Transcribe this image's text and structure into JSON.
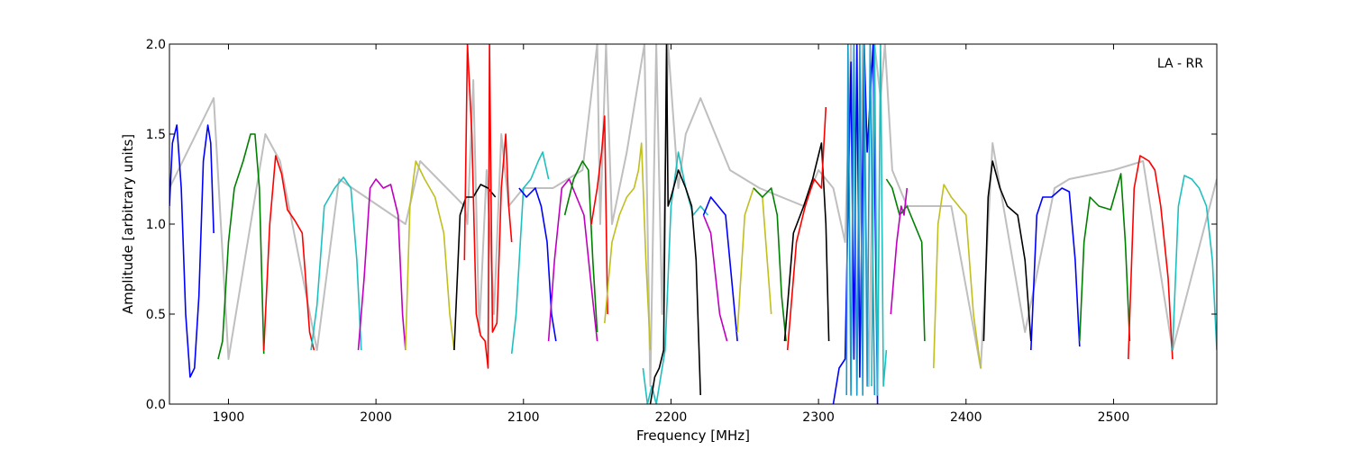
{
  "chart_data": {
    "type": "line",
    "title": "",
    "annotation": "LA - RR",
    "xlabel": "Frequency [MHz]",
    "ylabel": "Amplitude [arbitrary units]",
    "xlim": [
      1860,
      2570
    ],
    "ylim": [
      0.0,
      2.0
    ],
    "xticks": [
      1900,
      2000,
      2100,
      2200,
      2300,
      2400,
      2500
    ],
    "yticks": [
      0.0,
      0.5,
      1.0,
      1.5,
      2.0
    ],
    "xtick_labels": [
      "1900",
      "2000",
      "2100",
      "2200",
      "2300",
      "2400",
      "2500"
    ],
    "ytick_labels": [
      "0.0",
      "0.5",
      "1.0",
      "1.5",
      "2.0"
    ],
    "grid": false,
    "legend": "none",
    "colors": {
      "background_series": "#bfbfbf",
      "blue": "#0000ff",
      "green": "#008000",
      "red": "#ff0000",
      "cyan": "#1fbfbf",
      "magenta": "#bf00bf",
      "olive": "#bfbf1f",
      "black": "#000000",
      "teal": "#1a99c9"
    },
    "gray_series": {
      "x": [
        1860,
        1890,
        1900,
        1925,
        1935,
        1960,
        1975,
        2020,
        2030,
        2060,
        2062,
        2066,
        2070,
        2075,
        2080,
        2085,
        2090,
        2100,
        2120,
        2140,
        2150,
        2152,
        2156,
        2160,
        2170,
        2182,
        2186,
        2190,
        2194,
        2198,
        2205,
        2210,
        2220,
        2240,
        2260,
        2290,
        2300,
        2310,
        2318,
        2322,
        2326,
        2330,
        2334,
        2338,
        2342,
        2345,
        2350,
        2360,
        2370,
        2390,
        2410,
        2418,
        2440,
        2460,
        2470,
        2500,
        2520,
        2540,
        2570
      ],
      "y": [
        1.2,
        1.7,
        0.25,
        1.5,
        1.35,
        0.3,
        1.25,
        1.0,
        1.35,
        1.1,
        1.0,
        1.8,
        0.4,
        1.3,
        0.5,
        1.5,
        1.1,
        1.2,
        1.2,
        1.3,
        2.0,
        1.0,
        2.0,
        1.0,
        1.4,
        2.0,
        0.1,
        2.0,
        0.5,
        2.0,
        1.2,
        1.5,
        1.7,
        1.3,
        1.2,
        1.1,
        1.3,
        1.2,
        0.9,
        2.0,
        0.3,
        2.0,
        0.1,
        2.0,
        1.7,
        2.0,
        1.3,
        1.1,
        1.1,
        1.1,
        0.2,
        1.45,
        0.4,
        1.2,
        1.25,
        1.3,
        1.35,
        0.3,
        1.25
      ]
    },
    "series": [
      {
        "color": "blue",
        "x": [
          1860,
          1862,
          1865,
          1868,
          1871,
          1874,
          1877,
          1880,
          1883,
          1886,
          1888,
          1890
        ],
        "y": [
          1.1,
          1.45,
          1.55,
          1.2,
          0.5,
          0.15,
          0.2,
          0.6,
          1.35,
          1.55,
          1.45,
          0.95
        ]
      },
      {
        "color": "green",
        "x": [
          1893,
          1896,
          1900,
          1904,
          1910,
          1915,
          1918,
          1921,
          1924
        ],
        "y": [
          0.25,
          0.35,
          0.9,
          1.2,
          1.35,
          1.5,
          1.5,
          1.2,
          0.28
        ]
      },
      {
        "color": "red",
        "x": [
          1924,
          1928,
          1932,
          1936,
          1940,
          1945,
          1950,
          1955,
          1958
        ],
        "y": [
          0.3,
          1.0,
          1.38,
          1.28,
          1.08,
          1.02,
          0.95,
          0.4,
          0.3
        ]
      },
      {
        "color": "cyan",
        "x": [
          1956,
          1960,
          1965,
          1972,
          1978,
          1983,
          1987,
          1990
        ],
        "y": [
          0.3,
          0.55,
          1.1,
          1.2,
          1.26,
          1.2,
          0.8,
          0.3
        ]
      },
      {
        "color": "magenta",
        "x": [
          1988,
          1992,
          1996,
          2000,
          2005,
          2010,
          2015,
          2018,
          2020
        ],
        "y": [
          0.3,
          0.7,
          1.2,
          1.25,
          1.2,
          1.22,
          1.05,
          0.5,
          0.3
        ]
      },
      {
        "color": "olive",
        "x": [
          2020,
          2023,
          2027,
          2033,
          2040,
          2046,
          2050,
          2053
        ],
        "y": [
          0.3,
          1.1,
          1.35,
          1.25,
          1.15,
          0.95,
          0.5,
          0.3
        ]
      },
      {
        "color": "black",
        "x": [
          2053,
          2057,
          2061,
          2066,
          2071,
          2076,
          2081
        ],
        "y": [
          0.3,
          1.05,
          1.15,
          1.15,
          1.22,
          1.2,
          1.15
        ]
      },
      {
        "color": "red",
        "x": [
          2060,
          2062,
          2065,
          2068,
          2071,
          2074,
          2076,
          2077,
          2079,
          2082,
          2085,
          2088,
          2090,
          2092
        ],
        "y": [
          0.8,
          2.0,
          1.5,
          0.5,
          0.38,
          0.35,
          0.2,
          2.0,
          0.4,
          0.45,
          1.2,
          1.5,
          1.1,
          0.9
        ]
      },
      {
        "color": "cyan",
        "x": [
          2092,
          2095,
          2100,
          2105,
          2110,
          2113,
          2117
        ],
        "y": [
          0.28,
          0.5,
          1.2,
          1.25,
          1.35,
          1.4,
          1.25
        ]
      },
      {
        "color": "blue",
        "x": [
          2097,
          2102,
          2108,
          2112,
          2116,
          2119,
          2122
        ],
        "y": [
          1.2,
          1.15,
          1.2,
          1.1,
          0.9,
          0.5,
          0.35
        ]
      },
      {
        "color": "magenta",
        "x": [
          2117,
          2121,
          2126,
          2131,
          2136,
          2141,
          2146,
          2150
        ],
        "y": [
          0.35,
          0.8,
          1.2,
          1.25,
          1.15,
          1.05,
          0.65,
          0.35
        ]
      },
      {
        "color": "green",
        "x": [
          2128,
          2134,
          2140,
          2144,
          2147,
          2150
        ],
        "y": [
          1.05,
          1.25,
          1.35,
          1.3,
          0.8,
          0.4
        ]
      },
      {
        "color": "red",
        "x": [
          2146,
          2150,
          2153,
          2155,
          2157
        ],
        "y": [
          1.0,
          1.2,
          1.4,
          1.6,
          0.5
        ]
      },
      {
        "color": "olive",
        "x": [
          2155,
          2160,
          2165,
          2170,
          2175,
          2178,
          2180,
          2183,
          2186
        ],
        "y": [
          0.45,
          0.9,
          1.05,
          1.15,
          1.2,
          1.3,
          1.45,
          0.8,
          0.3
        ]
      },
      {
        "color": "cyan",
        "x": [
          2181,
          2184,
          2187,
          2190,
          2193,
          2196,
          2200,
          2205,
          2210,
          2215,
          2220,
          2225
        ],
        "y": [
          0.2,
          0.0,
          0.1,
          0.0,
          0.15,
          0.3,
          1.1,
          1.4,
          1.2,
          1.05,
          1.1,
          1.05
        ]
      },
      {
        "color": "black",
        "x": [
          2186,
          2189,
          2192,
          2195,
          2197,
          2198,
          2200,
          2205,
          2210,
          2214,
          2217,
          2220
        ],
        "y": [
          0.0,
          0.15,
          0.2,
          0.3,
          2.0,
          1.1,
          1.15,
          1.3,
          1.2,
          1.1,
          0.8,
          0.05
        ]
      },
      {
        "color": "blue",
        "x": [
          2222,
          2227,
          2232,
          2237,
          2241,
          2245
        ],
        "y": [
          1.05,
          1.15,
          1.1,
          1.05,
          0.7,
          0.35
        ]
      },
      {
        "color": "magenta",
        "x": [
          2222,
          2227,
          2233,
          2238
        ],
        "y": [
          1.05,
          0.95,
          0.5,
          0.35
        ]
      },
      {
        "color": "olive",
        "x": [
          2245,
          2250,
          2256,
          2262,
          2268
        ],
        "y": [
          0.4,
          1.05,
          1.2,
          1.15,
          0.5
        ]
      },
      {
        "color": "green",
        "x": [
          2256,
          2262,
          2268,
          2272,
          2275,
          2278
        ],
        "y": [
          1.2,
          1.15,
          1.2,
          1.05,
          0.6,
          0.35
        ]
      },
      {
        "color": "black",
        "x": [
          2277,
          2283,
          2290,
          2296,
          2302,
          2305,
          2307
        ],
        "y": [
          0.35,
          0.95,
          1.1,
          1.25,
          1.45,
          1.0,
          0.35
        ]
      },
      {
        "color": "red",
        "x": [
          2279,
          2285,
          2291,
          2297,
          2302,
          2305
        ],
        "y": [
          0.3,
          0.9,
          1.1,
          1.25,
          1.2,
          1.65
        ]
      },
      {
        "color": "blue",
        "x": [
          2310,
          2314,
          2318,
          2322,
          2324,
          2326,
          2328,
          2331,
          2333,
          2337,
          2340
        ],
        "y": [
          0.0,
          0.2,
          0.25,
          1.9,
          0.25,
          2.0,
          0.15,
          2.0,
          1.4,
          2.0,
          0.0
        ]
      },
      {
        "color": "teal",
        "x": [
          2319,
          2320,
          2322,
          2324,
          2326,
          2328,
          2330,
          2331,
          2333,
          2335,
          2338
        ],
        "y": [
          0.05,
          2.0,
          0.05,
          2.0,
          0.05,
          2.0,
          0.05,
          2.0,
          0.1,
          2.0,
          0.05
        ]
      },
      {
        "color": "cyan",
        "x": [
          2336,
          2338,
          2340,
          2342,
          2344,
          2346
        ],
        "y": [
          0.1,
          2.0,
          0.05,
          2.0,
          0.1,
          0.3
        ]
      },
      {
        "color": "green",
        "x": [
          2346,
          2350,
          2355,
          2360,
          2365,
          2370,
          2372
        ],
        "y": [
          1.25,
          1.2,
          1.05,
          1.1,
          1.0,
          0.9,
          0.35
        ]
      },
      {
        "color": "magenta",
        "x": [
          2349,
          2353,
          2356,
          2358,
          2360
        ],
        "y": [
          0.5,
          0.9,
          1.1,
          1.05,
          1.2
        ]
      },
      {
        "color": "olive",
        "x": [
          2378,
          2381,
          2385,
          2390,
          2395,
          2400,
          2405,
          2410
        ],
        "y": [
          0.2,
          1.0,
          1.22,
          1.15,
          1.1,
          1.05,
          0.5,
          0.2
        ]
      },
      {
        "color": "black",
        "x": [
          2412,
          2415,
          2418,
          2423,
          2428,
          2435,
          2440,
          2444
        ],
        "y": [
          0.35,
          1.15,
          1.35,
          1.2,
          1.1,
          1.05,
          0.8,
          0.35
        ]
      },
      {
        "color": "blue",
        "x": [
          2444,
          2448,
          2452,
          2458,
          2465,
          2470,
          2474,
          2477
        ],
        "y": [
          0.3,
          1.05,
          1.15,
          1.15,
          1.2,
          1.18,
          0.8,
          0.32
        ]
      },
      {
        "color": "green",
        "x": [
          2477,
          2480,
          2484,
          2490,
          2498,
          2505,
          2508,
          2511
        ],
        "y": [
          0.35,
          0.9,
          1.15,
          1.1,
          1.08,
          1.28,
          0.9,
          0.35
        ]
      },
      {
        "color": "red",
        "x": [
          2510,
          2514,
          2518,
          2524,
          2528,
          2532,
          2537,
          2540
        ],
        "y": [
          0.25,
          1.2,
          1.38,
          1.35,
          1.3,
          1.1,
          0.7,
          0.25
        ]
      },
      {
        "color": "cyan",
        "x": [
          2540,
          2544,
          2548,
          2553,
          2558,
          2563,
          2567,
          2570
        ],
        "y": [
          0.3,
          1.1,
          1.27,
          1.25,
          1.2,
          1.1,
          0.8,
          0.3
        ]
      }
    ]
  }
}
